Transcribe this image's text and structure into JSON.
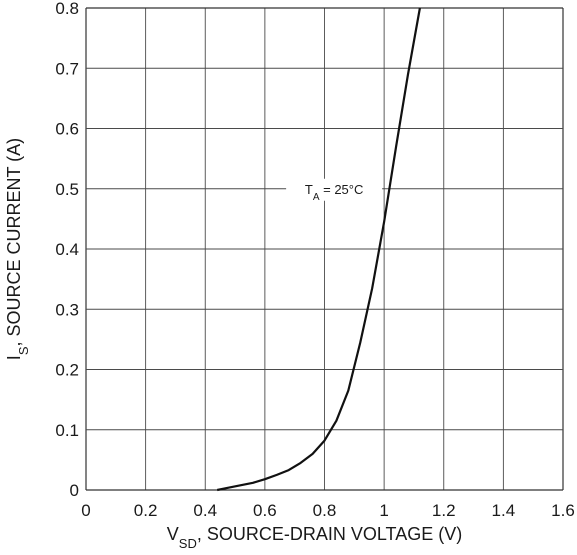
{
  "chart_data": {
    "type": "line",
    "title": "",
    "xlabel": {
      "main": "V",
      "sub": "SD",
      "rest": ", SOURCE-DRAIN VOLTAGE (V)"
    },
    "ylabel": {
      "main": "I",
      "sub": "S",
      "rest": ", SOURCE CURRENT (A)"
    },
    "xlim": [
      0,
      1.6
    ],
    "ylim": [
      0,
      0.8
    ],
    "x_ticks": [
      0,
      0.2,
      0.4,
      0.6,
      0.8,
      1,
      1.2,
      1.4,
      1.6
    ],
    "x_tick_labels": [
      "0",
      "0.2",
      "0.4",
      "0.6",
      "0.8",
      "1",
      "1.2",
      "1.4",
      "1.6"
    ],
    "y_ticks": [
      0,
      0.1,
      0.2,
      0.3,
      0.4,
      0.5,
      0.6,
      0.7,
      0.8
    ],
    "y_tick_labels": [
      "0",
      "0.1",
      "0.2",
      "0.3",
      "0.4",
      "0.5",
      "0.6",
      "0.7",
      "0.8"
    ],
    "grid": true,
    "annotation": {
      "main": "T",
      "sub": "A",
      "rest": " = 25°C",
      "x": 1.0,
      "y": 0.5
    },
    "series": [
      {
        "color": "#111111",
        "x": [
          0.44,
          0.48,
          0.52,
          0.56,
          0.6,
          0.64,
          0.68,
          0.72,
          0.76,
          0.8,
          0.84,
          0.88,
          0.92,
          0.96,
          1.0,
          1.04,
          1.08,
          1.12
        ],
        "y": [
          0.0,
          0.004,
          0.008,
          0.012,
          0.018,
          0.025,
          0.033,
          0.045,
          0.06,
          0.082,
          0.115,
          0.165,
          0.245,
          0.335,
          0.445,
          0.57,
          0.69,
          0.8
        ]
      }
    ]
  }
}
